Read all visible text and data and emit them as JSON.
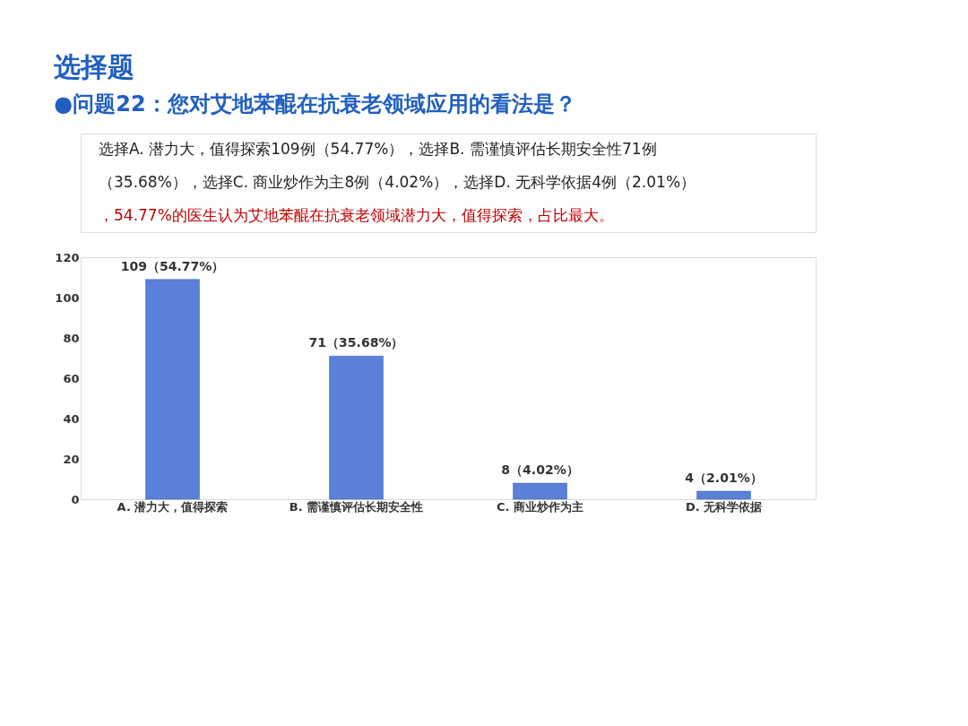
{
  "chart_data": {
    "type": "bar",
    "title": "选择题",
    "subtitle": "●问题22：您对艾地苯醌在抗衰老领域应用的看法是？",
    "annotations": [
      "选择A. 潜力大，值得探索109例（54.77%），选择B. 需谨慎评估长期安全性71例",
      "（35.68%），选择C. 商业炒作为主8例（4.02%），选择D. 无科学依据4例（2.01%）",
      "，54.77%的医生认为艾地苯醌在抗衰老领域潜力大，值得探索，占比最大。"
    ],
    "categories": [
      "A. 潜力大，值得探索",
      "B. 需谨慎评估长期安全性",
      "C. 商业炒作为主",
      "D. 无科学依据"
    ],
    "values": [
      109,
      71,
      8,
      4
    ],
    "value_labels": [
      "109（54.77%）",
      "71（35.68%）",
      "8（4.02%）",
      "4（2.01%）"
    ],
    "color": "#5b80d8",
    "ylim": [
      0,
      120
    ],
    "yticks": [
      0,
      20,
      40,
      60,
      80,
      100,
      120
    ],
    "grid": false
  }
}
